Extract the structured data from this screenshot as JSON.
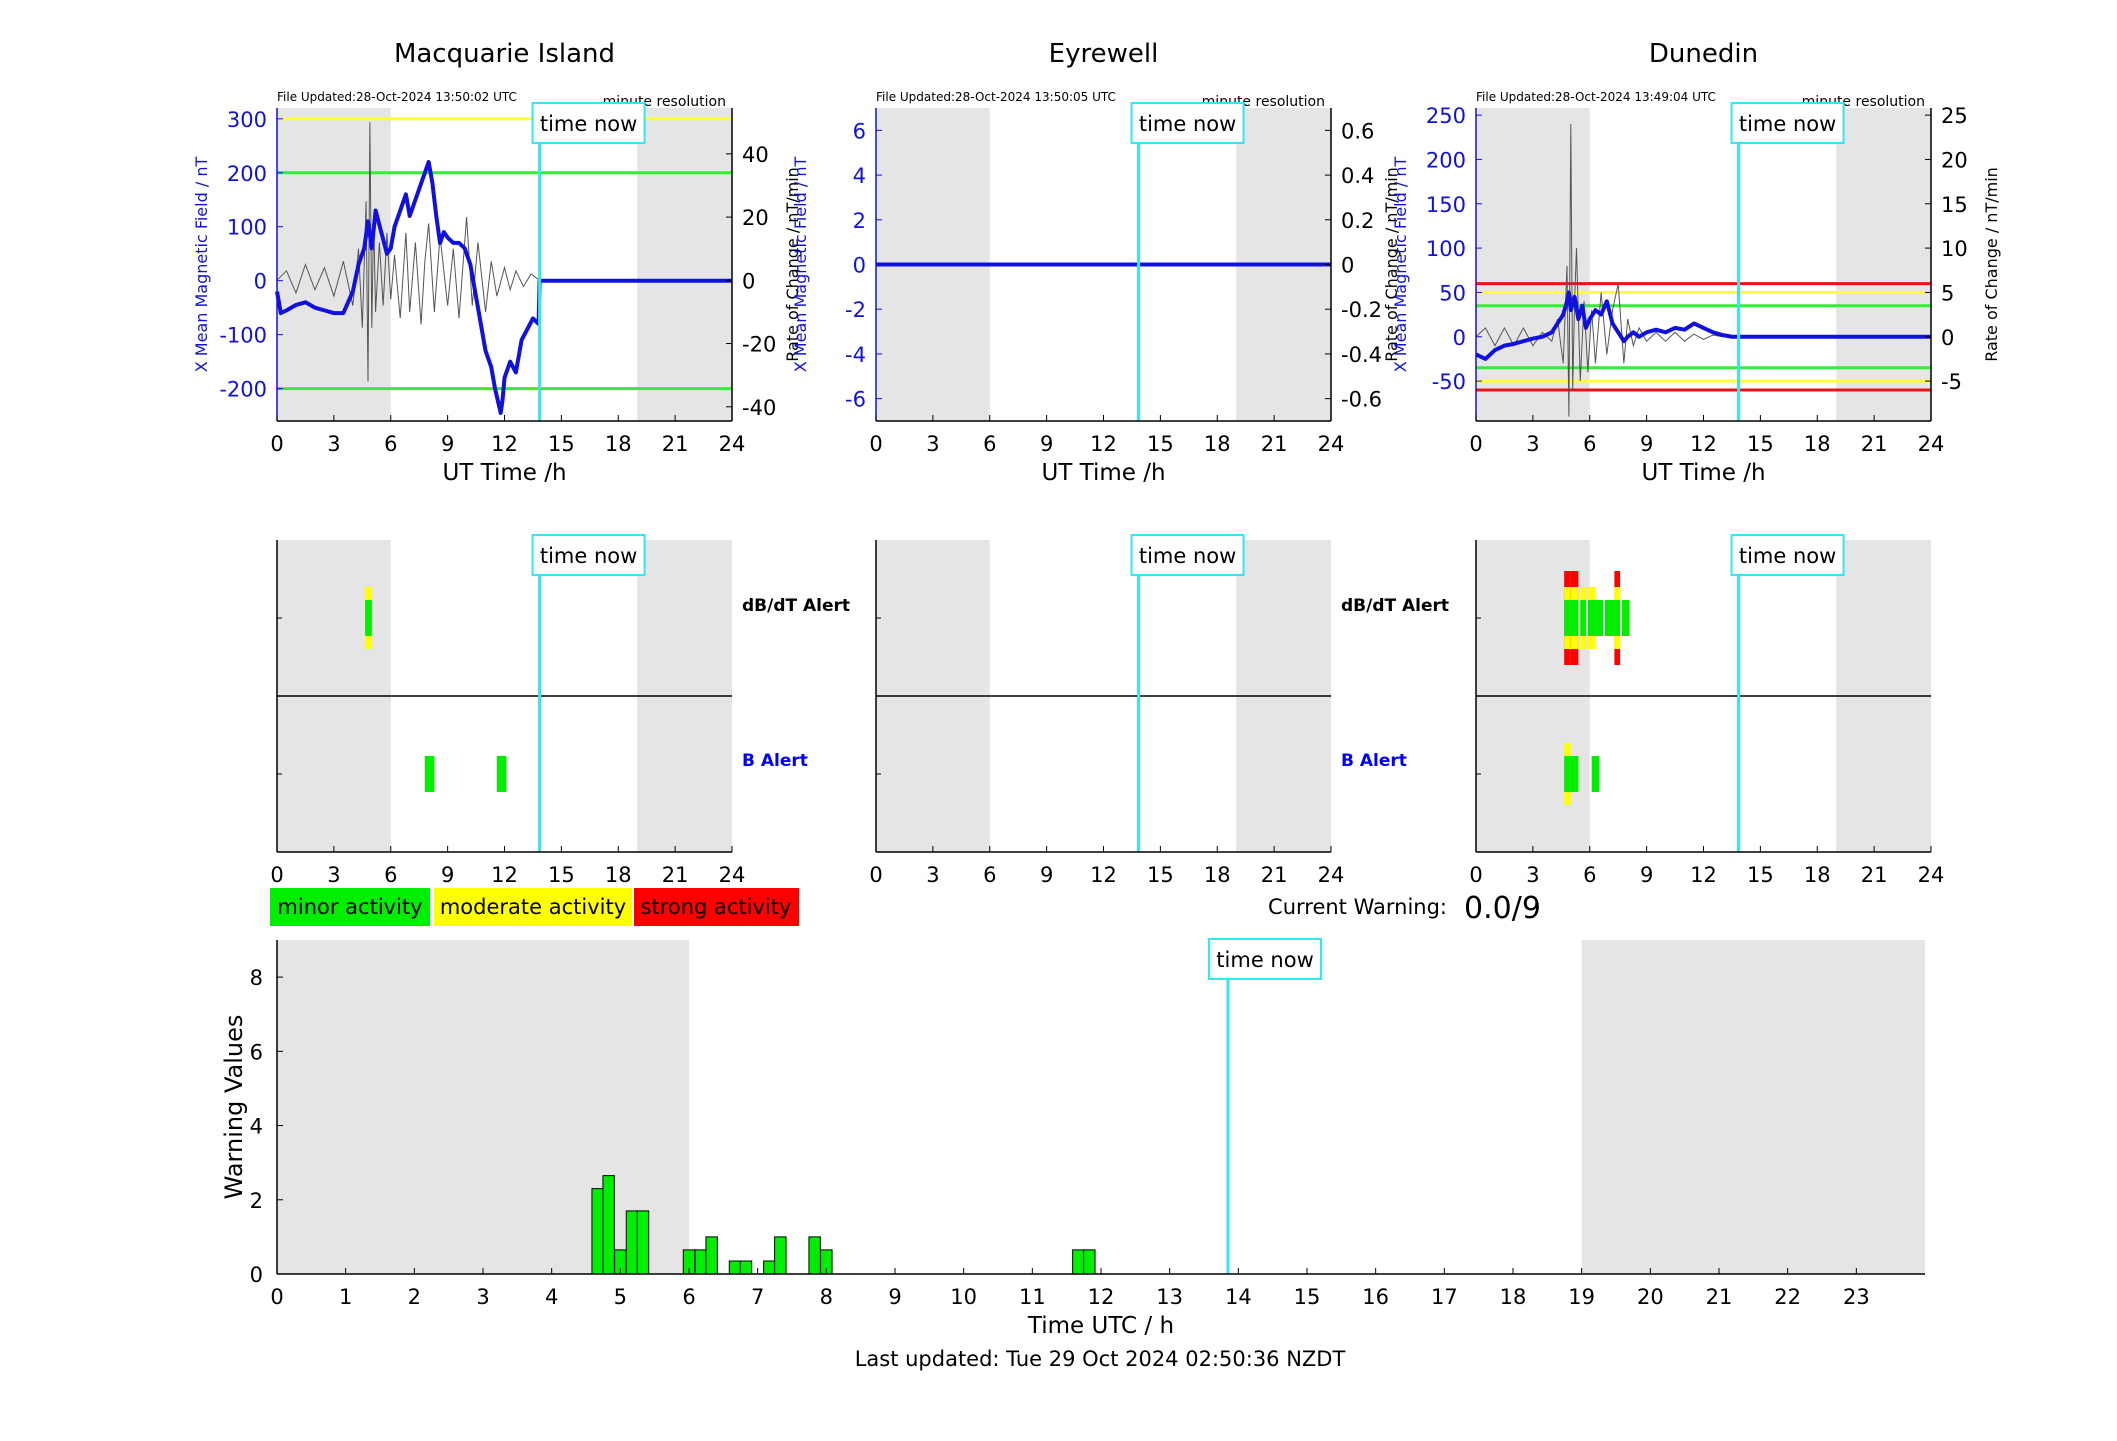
{
  "colors": {
    "x_field": "#1010e0",
    "rate": "#555555",
    "now_line": "#33e6ef",
    "night": "#e5e5e5",
    "minor": "#00ee00",
    "moderate": "#ffff00",
    "strong": "#ff0000",
    "threshold_yellow": "#ffff33",
    "threshold_green": "#33ee33",
    "threshold_red": "#ee1111",
    "b_alert_label": "#0000ff",
    "axis": "#000000"
  },
  "labels": {
    "time_now": "time now",
    "x_axis": "UT Time /h",
    "y_left": "X Mean Magnetic Field / nT",
    "y_right": "Rate of Change / nT/min",
    "resolution": "minute resolution",
    "dbdt_alert": "dB/dT Alert",
    "b_alert": "B Alert",
    "current_warning_label": "Current Warning:",
    "current_warning_value": "0.0/9",
    "legend_minor": "minor activity",
    "legend_moderate": "moderate activity",
    "legend_strong": "strong activity",
    "bottom_ylabel": "Warning Values",
    "bottom_xlabel": "Time UTC / h",
    "last_updated": "Last updated: Tue 29 Oct 2024 02:50:36 NZDT"
  },
  "chart_data": [
    {
      "type": "line",
      "station": "Macquarie Island",
      "file_updated": "File Updated:28-Oct-2024 13:50:02 UTC",
      "xlim": [
        0,
        24
      ],
      "x_ticks": [
        0,
        3,
        6,
        9,
        12,
        15,
        18,
        21,
        24
      ],
      "ylim": [
        -260,
        320
      ],
      "y_ticks": [
        -200,
        -100,
        0,
        100,
        200,
        300
      ],
      "y2lim": [
        -44.5,
        54.5
      ],
      "y2_ticks": [
        -40,
        -20,
        0,
        20,
        40
      ],
      "night": [
        [
          0,
          6
        ],
        [
          19,
          24
        ]
      ],
      "now": 13.85,
      "thresholds": [
        {
          "level": "moderate",
          "value": 300
        },
        {
          "level": "minor",
          "value": 200
        },
        {
          "level": "minor",
          "value": -200
        }
      ],
      "x_field": {
        "x": [
          0,
          0.2,
          0.5,
          1.0,
          1.5,
          2.0,
          2.5,
          3.0,
          3.5,
          4.0,
          4.3,
          4.6,
          4.8,
          5.0,
          5.2,
          5.5,
          5.8,
          6.0,
          6.2,
          6.5,
          6.8,
          7.0,
          7.2,
          7.5,
          7.8,
          8.0,
          8.2,
          8.4,
          8.6,
          8.8,
          9.0,
          9.3,
          9.6,
          9.9,
          10.2,
          10.5,
          10.8,
          11.0,
          11.3,
          11.5,
          11.7,
          11.8,
          11.9,
          12.0,
          12.3,
          12.6,
          12.9,
          13.2,
          13.5,
          13.8,
          13.85,
          24
        ],
        "y": [
          -20,
          -60,
          -55,
          -45,
          -40,
          -50,
          -55,
          -60,
          -60,
          -20,
          30,
          60,
          110,
          60,
          130,
          90,
          50,
          60,
          100,
          130,
          160,
          120,
          140,
          170,
          200,
          220,
          180,
          120,
          70,
          90,
          80,
          70,
          70,
          60,
          30,
          -30,
          -90,
          -130,
          -160,
          -200,
          -230,
          -245,
          -220,
          -180,
          -150,
          -170,
          -110,
          -90,
          -70,
          -80,
          0,
          0
        ]
      },
      "rate_of_change": {
        "x": [
          0,
          0.5,
          1.0,
          1.5,
          2.0,
          2.5,
          3.0,
          3.5,
          4.0,
          4.3,
          4.5,
          4.7,
          4.8,
          4.9,
          5.0,
          5.1,
          5.2,
          5.4,
          5.6,
          5.8,
          6.0,
          6.2,
          6.5,
          6.8,
          7.0,
          7.3,
          7.6,
          7.8,
          8.0,
          8.3,
          8.6,
          9.0,
          9.3,
          9.6,
          10.0,
          10.3,
          10.6,
          11.0,
          11.3,
          11.6,
          12.0,
          12.3,
          12.6,
          13.0,
          13.4,
          13.85
        ],
        "y": [
          0,
          3,
          -4,
          5,
          -3,
          4,
          -5,
          6,
          -8,
          10,
          -15,
          25,
          -32,
          50,
          -15,
          20,
          -10,
          12,
          -8,
          15,
          -6,
          8,
          -12,
          15,
          -10,
          12,
          -14,
          6,
          18,
          -10,
          14,
          -8,
          10,
          -12,
          20,
          -8,
          12,
          -10,
          6,
          -5,
          4,
          -3,
          3,
          -2,
          2,
          0
        ]
      }
    },
    {
      "type": "line",
      "station": "Eyrewell",
      "file_updated": "File Updated:28-Oct-2024 13:50:05 UTC",
      "xlim": [
        0,
        24
      ],
      "x_ticks": [
        0,
        3,
        6,
        9,
        12,
        15,
        18,
        21,
        24
      ],
      "ylim": [
        -7,
        7
      ],
      "y_ticks": [
        -6,
        -4,
        -2,
        0,
        2,
        4,
        6
      ],
      "y2lim": [
        -0.7,
        0.7
      ],
      "y2_ticks": [
        -0.6,
        -0.4,
        -0.2,
        0,
        0.2,
        0.4,
        0.6
      ],
      "y2_tick_labels": [
        "-0.6",
        "-0.4",
        "-0.2",
        "0",
        "0.2",
        "0.4",
        "0.6"
      ],
      "night": [
        [
          0,
          6
        ],
        [
          19,
          24
        ]
      ],
      "now": 13.85,
      "thresholds": [],
      "x_field": {
        "x": [
          0,
          24
        ],
        "y": [
          0,
          0
        ]
      },
      "rate_of_change": {
        "x": [
          0,
          24
        ],
        "y": [
          0,
          0
        ]
      }
    },
    {
      "type": "line",
      "station": "Dunedin",
      "file_updated": "File Updated:28-Oct-2024 13:49:04 UTC",
      "xlim": [
        0,
        24
      ],
      "x_ticks": [
        0,
        3,
        6,
        9,
        12,
        15,
        18,
        21,
        24
      ],
      "ylim": [
        -95,
        258
      ],
      "y_ticks": [
        -50,
        0,
        50,
        100,
        150,
        200,
        250
      ],
      "y2lim": [
        -9.5,
        25.8
      ],
      "y2_ticks": [
        -5,
        0,
        5,
        10,
        15,
        20,
        25
      ],
      "night": [
        [
          0,
          6
        ],
        [
          19,
          24
        ]
      ],
      "now": 13.85,
      "thresholds": [
        {
          "level": "strong",
          "value": 60
        },
        {
          "level": "moderate",
          "value": 50
        },
        {
          "level": "minor",
          "value": 35
        },
        {
          "level": "minor",
          "value": -35
        },
        {
          "level": "moderate",
          "value": -50
        },
        {
          "level": "strong",
          "value": -60
        }
      ],
      "x_field": {
        "x": [
          0,
          0.5,
          1.0,
          1.5,
          2.0,
          2.5,
          3.0,
          3.5,
          4.0,
          4.3,
          4.6,
          4.8,
          4.9,
          5.0,
          5.2,
          5.4,
          5.6,
          5.8,
          6.0,
          6.3,
          6.6,
          6.9,
          7.2,
          7.5,
          7.8,
          8.0,
          8.3,
          8.6,
          9.0,
          9.5,
          10.0,
          10.5,
          11.0,
          11.5,
          12.0,
          12.5,
          13.0,
          13.5,
          13.85,
          24
        ],
        "y": [
          -20,
          -25,
          -15,
          -10,
          -8,
          -5,
          -2,
          0,
          5,
          15,
          25,
          40,
          50,
          30,
          45,
          20,
          35,
          10,
          20,
          30,
          25,
          40,
          15,
          5,
          -5,
          0,
          5,
          0,
          5,
          8,
          5,
          10,
          8,
          15,
          10,
          5,
          2,
          0,
          0,
          0
        ]
      },
      "rate_of_change": {
        "x": [
          0,
          0.5,
          1.0,
          1.5,
          2.0,
          2.5,
          3.0,
          3.5,
          4.0,
          4.3,
          4.6,
          4.8,
          4.9,
          5.0,
          5.1,
          5.2,
          5.3,
          5.5,
          5.7,
          5.9,
          6.1,
          6.3,
          6.6,
          6.9,
          7.2,
          7.5,
          7.8,
          8.0,
          8.3,
          8.6,
          9.0,
          9.5,
          10.0,
          10.5,
          11.0,
          11.5,
          12.0,
          12.5,
          13.0,
          13.85
        ],
        "y": [
          0,
          1,
          -1,
          1,
          -1,
          1,
          -1,
          0.5,
          -0.5,
          2,
          -3,
          8,
          -9,
          24,
          -6,
          4,
          10,
          -5,
          4,
          -4,
          3,
          -3,
          5,
          -2,
          3,
          6,
          -3,
          2,
          -1,
          1,
          -0.5,
          0.5,
          -0.5,
          0.5,
          -0.5,
          0.3,
          -0.3,
          0.2,
          0,
          0
        ]
      }
    },
    {
      "type": "heatmap",
      "station": "Macquarie Island",
      "panel": "alerts",
      "xlim": [
        0,
        24
      ],
      "x_ticks": [
        0,
        3,
        6,
        9,
        12,
        15,
        18,
        21,
        24
      ],
      "night": [
        [
          0,
          6
        ],
        [
          19,
          24
        ]
      ],
      "now": 13.85,
      "dbdt_alert": [
        {
          "start": 4.65,
          "end": 5.0,
          "level": 2
        }
      ],
      "b_alert": [
        {
          "start": 7.8,
          "end": 8.3,
          "level": 1
        },
        {
          "start": 11.6,
          "end": 12.1,
          "level": 1
        }
      ]
    },
    {
      "type": "heatmap",
      "station": "Eyrewell",
      "panel": "alerts",
      "xlim": [
        0,
        24
      ],
      "x_ticks": [
        0,
        3,
        6,
        9,
        12,
        15,
        18,
        21,
        24
      ],
      "night": [
        [
          0,
          6
        ],
        [
          19,
          24
        ]
      ],
      "now": 13.85,
      "dbdt_alert": [],
      "b_alert": []
    },
    {
      "type": "heatmap",
      "station": "Dunedin",
      "panel": "alerts",
      "xlim": [
        0,
        24
      ],
      "x_ticks": [
        0,
        3,
        6,
        9,
        12,
        15,
        18,
        21,
        24
      ],
      "night": [
        [
          0,
          6
        ],
        [
          19,
          24
        ]
      ],
      "now": 13.85,
      "dbdt_alert": [
        {
          "start": 4.65,
          "end": 5.0,
          "level": 3
        },
        {
          "start": 5.0,
          "end": 5.4,
          "level": 3
        },
        {
          "start": 5.5,
          "end": 5.8,
          "level": 2
        },
        {
          "start": 5.9,
          "end": 6.3,
          "level": 2
        },
        {
          "start": 6.3,
          "end": 6.7,
          "level": 1
        },
        {
          "start": 6.8,
          "end": 7.3,
          "level": 1
        },
        {
          "start": 7.3,
          "end": 7.6,
          "level": 3
        },
        {
          "start": 7.7,
          "end": 8.1,
          "level": 1
        }
      ],
      "b_alert": [
        {
          "start": 4.65,
          "end": 5.0,
          "level": 2
        },
        {
          "start": 5.0,
          "end": 5.4,
          "level": 1
        },
        {
          "start": 6.1,
          "end": 6.5,
          "level": 1
        }
      ]
    },
    {
      "type": "bar",
      "panel": "warning_values",
      "xlim": [
        0,
        24
      ],
      "x_ticks": [
        0,
        1,
        2,
        3,
        4,
        5,
        6,
        7,
        8,
        9,
        10,
        11,
        12,
        13,
        14,
        15,
        16,
        17,
        18,
        19,
        20,
        21,
        22,
        23
      ],
      "ylim": [
        0,
        9
      ],
      "y_ticks": [
        0,
        2,
        4,
        6,
        8
      ],
      "night": [
        [
          0,
          6
        ],
        [
          19,
          24
        ]
      ],
      "now": 13.85,
      "bar_width": 0.1667,
      "x": [
        4.67,
        4.83,
        5.0,
        5.17,
        5.33,
        6.0,
        6.17,
        6.33,
        6.67,
        6.83,
        7.17,
        7.33,
        7.83,
        8.0,
        11.67,
        11.83
      ],
      "values": [
        2.3,
        2.65,
        0.65,
        1.7,
        1.7,
        0.65,
        0.65,
        1.0,
        0.35,
        0.35,
        0.35,
        1.0,
        1.0,
        0.65,
        0.65,
        0.65
      ]
    }
  ]
}
